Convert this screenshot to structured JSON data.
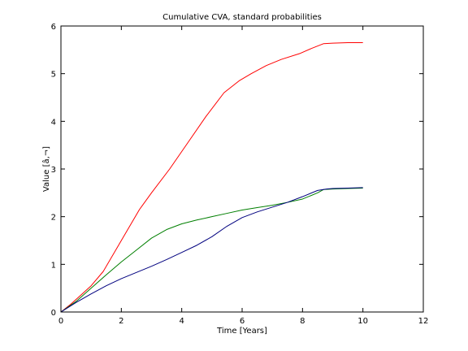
{
  "chart_data": {
    "type": "line",
    "title": "Cumulative CVA, standard probabilities",
    "xlabel": "Time [Years]",
    "ylabel": "Value [â‚¬]",
    "xlim": [
      0,
      12
    ],
    "ylim": [
      0,
      6
    ],
    "xticks": [
      0,
      2,
      4,
      6,
      8,
      10,
      12
    ],
    "yticks": [
      0,
      1,
      2,
      3,
      4,
      5,
      6
    ],
    "grid": false,
    "series": [
      {
        "color": "#ff0000",
        "x": [
          0,
          0.3,
          0.6,
          1.0,
          1.4,
          2.0,
          2.6,
          3.0,
          3.6,
          4.2,
          4.8,
          5.4,
          5.9,
          6.3,
          6.8,
          7.3,
          7.9,
          8.3,
          8.7,
          9.0,
          9.5,
          10.0
        ],
        "y": [
          0,
          0.15,
          0.32,
          0.55,
          0.85,
          1.5,
          2.15,
          2.5,
          3.0,
          3.55,
          4.1,
          4.6,
          4.85,
          5.0,
          5.17,
          5.3,
          5.42,
          5.53,
          5.63,
          5.64,
          5.65,
          5.65
        ]
      },
      {
        "color": "#007f00",
        "x": [
          0,
          0.5,
          1.0,
          1.5,
          2.0,
          2.5,
          3.0,
          3.5,
          4.0,
          4.5,
          5.0,
          5.5,
          6.0,
          6.5,
          7.0,
          7.5,
          8.0,
          8.5,
          8.7,
          9.0,
          9.5,
          10.0
        ],
        "y": [
          0,
          0.22,
          0.5,
          0.78,
          1.05,
          1.3,
          1.55,
          1.73,
          1.85,
          1.93,
          2.0,
          2.07,
          2.14,
          2.19,
          2.24,
          2.3,
          2.37,
          2.5,
          2.57,
          2.58,
          2.59,
          2.6
        ]
      },
      {
        "color": "#00007f",
        "x": [
          0,
          0.5,
          1.0,
          1.5,
          2.0,
          2.5,
          3.0,
          3.5,
          4.0,
          4.5,
          5.0,
          5.5,
          6.0,
          6.5,
          7.0,
          7.5,
          8.0,
          8.5,
          8.8,
          9.0,
          9.5,
          10.0
        ],
        "y": [
          0,
          0.2,
          0.38,
          0.55,
          0.7,
          0.83,
          0.96,
          1.1,
          1.25,
          1.4,
          1.58,
          1.8,
          1.98,
          2.1,
          2.2,
          2.3,
          2.42,
          2.55,
          2.58,
          2.59,
          2.6,
          2.61
        ]
      }
    ]
  }
}
